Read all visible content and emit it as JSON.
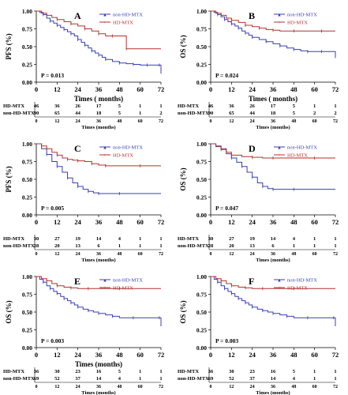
{
  "colors": {
    "non_hd_mtx": "#3a3fb4",
    "hd_mtx": "#b4322e"
  },
  "chart_data": [
    {
      "type": "line",
      "panel_letter": "A",
      "ylabel": "PFS (%)",
      "xlabel": "Times ( months)",
      "xlim": [
        0,
        72
      ],
      "ylim": [
        0,
        1.0
      ],
      "x_ticks": [
        "0",
        "12",
        "24",
        "36",
        "48",
        "60",
        "72"
      ],
      "y_ticks": [
        "0.00",
        "0.25",
        "0.50",
        "0.75",
        "1.00"
      ],
      "p_value": "P = 0.013",
      "risk_xlabel": "Times (months)",
      "series": [
        {
          "name": "non-HD-MTX",
          "color_key": "non_hd_mtx",
          "marker": "▲",
          "x": [
            0,
            2,
            4,
            6,
            8,
            10,
            12,
            14,
            16,
            18,
            20,
            22,
            24,
            26,
            28,
            30,
            32,
            34,
            36,
            38,
            40,
            44,
            48,
            52,
            56,
            60,
            64,
            68,
            71,
            72
          ],
          "y": [
            1.0,
            0.98,
            0.95,
            0.9,
            0.86,
            0.83,
            0.8,
            0.77,
            0.74,
            0.71,
            0.68,
            0.65,
            0.6,
            0.56,
            0.52,
            0.48,
            0.44,
            0.41,
            0.38,
            0.35,
            0.32,
            0.29,
            0.27,
            0.26,
            0.25,
            0.24,
            0.24,
            0.24,
            0.24,
            0.12
          ]
        },
        {
          "name": "HD-MTX",
          "color_key": "hd_mtx",
          "marker": "+",
          "x": [
            0,
            3,
            6,
            9,
            12,
            16,
            20,
            24,
            28,
            32,
            36,
            40,
            44,
            48,
            52,
            60,
            72
          ],
          "y": [
            1.0,
            0.97,
            0.94,
            0.91,
            0.88,
            0.85,
            0.82,
            0.79,
            0.75,
            0.72,
            0.68,
            0.65,
            0.65,
            0.65,
            0.47,
            0.47,
            0.47
          ]
        }
      ],
      "risk_table": [
        {
          "label": "HD-MTX",
          "values": [
            "46",
            "36",
            "26",
            "17",
            "5",
            "1",
            "1"
          ]
        },
        {
          "label": "non-HD-MTX",
          "values": [
            "90",
            "65",
            "44",
            "18",
            "5",
            "1",
            "2"
          ]
        }
      ]
    },
    {
      "type": "line",
      "panel_letter": "B",
      "ylabel": "OS (%)",
      "xlabel": "Times ( months)",
      "xlim": [
        0,
        72
      ],
      "ylim": [
        0,
        1.0
      ],
      "x_ticks": [
        "0",
        "12",
        "24",
        "36",
        "48",
        "60",
        "72"
      ],
      "y_ticks": [
        "0.00",
        "0.25",
        "0.50",
        "0.75",
        "1.00"
      ],
      "p_value": "P = 0.024",
      "risk_xlabel": "Times (months)",
      "series": [
        {
          "name": "non-HD-MTX",
          "color_key": "non_hd_mtx",
          "marker": "▲",
          "x": [
            0,
            2,
            4,
            6,
            8,
            10,
            12,
            14,
            16,
            18,
            20,
            22,
            24,
            28,
            32,
            36,
            40,
            44,
            48,
            52,
            56,
            60,
            64,
            70,
            72
          ],
          "y": [
            1.0,
            0.98,
            0.95,
            0.92,
            0.88,
            0.85,
            0.82,
            0.79,
            0.76,
            0.72,
            0.69,
            0.66,
            0.63,
            0.6,
            0.57,
            0.54,
            0.51,
            0.48,
            0.46,
            0.44,
            0.43,
            0.43,
            0.43,
            0.43,
            0.34
          ]
        },
        {
          "name": "HD-MTX",
          "color_key": "hd_mtx",
          "marker": "+",
          "x": [
            0,
            3,
            6,
            9,
            12,
            16,
            20,
            24,
            28,
            32,
            36,
            40,
            48,
            56,
            64,
            72
          ],
          "y": [
            1.0,
            0.97,
            0.94,
            0.9,
            0.87,
            0.84,
            0.8,
            0.78,
            0.76,
            0.74,
            0.73,
            0.72,
            0.72,
            0.72,
            0.72,
            0.72
          ]
        }
      ],
      "risk_table": [
        {
          "label": "HD-MTX",
          "values": [
            "46",
            "36",
            "26",
            "17",
            "5",
            "1",
            "1"
          ]
        },
        {
          "label": "non-HD-MTX",
          "values": [
            "90",
            "65",
            "44",
            "18",
            "5",
            "2",
            "2"
          ]
        }
      ]
    },
    {
      "type": "line",
      "panel_letter": "C",
      "ylabel": "PFS (%)",
      "xlabel": "",
      "xlim": [
        0,
        72
      ],
      "ylim": [
        0,
        1.0
      ],
      "x_ticks": [
        "0",
        "12",
        "24",
        "36",
        "48",
        "60",
        "72"
      ],
      "y_ticks": [
        "0.00",
        "0.25",
        "0.50",
        "0.75",
        "1.00"
      ],
      "p_value": "P = 0.005",
      "risk_xlabel": "Times (months)",
      "series": [
        {
          "name": "non-HD-MTX",
          "color_key": "non_hd_mtx",
          "marker": "▲",
          "x": [
            0,
            3,
            6,
            9,
            12,
            15,
            18,
            21,
            24,
            27,
            30,
            33,
            36,
            40,
            48,
            60,
            72
          ],
          "y": [
            1.0,
            0.93,
            0.85,
            0.75,
            0.68,
            0.6,
            0.52,
            0.45,
            0.4,
            0.36,
            0.33,
            0.31,
            0.3,
            0.3,
            0.3,
            0.3,
            0.3
          ]
        },
        {
          "name": "HD-MTX",
          "color_key": "hd_mtx",
          "marker": "+",
          "x": [
            0,
            3,
            6,
            9,
            12,
            15,
            18,
            21,
            24,
            28,
            32,
            36,
            40,
            48,
            60,
            72
          ],
          "y": [
            1.0,
            0.97,
            0.93,
            0.88,
            0.84,
            0.8,
            0.78,
            0.77,
            0.76,
            0.75,
            0.72,
            0.7,
            0.69,
            0.69,
            0.69,
            0.69
          ]
        }
      ],
      "risk_table": [
        {
          "label": "HD-MTX",
          "values": [
            "30",
            "27",
            "19",
            "14",
            "4",
            "1",
            "1"
          ]
        },
        {
          "label": "non-HD-MTX",
          "values": [
            "28",
            "20",
            "13",
            "6",
            "1",
            "1",
            "1"
          ]
        }
      ]
    },
    {
      "type": "line",
      "panel_letter": "D",
      "ylabel": "OS (%)",
      "xlabel": "",
      "xlim": [
        0,
        72
      ],
      "ylim": [
        0,
        1.0
      ],
      "x_ticks": [
        "0",
        "12",
        "24",
        "36",
        "48",
        "60",
        "72"
      ],
      "y_ticks": [
        "0.00",
        "0.25",
        "0.50",
        "0.75",
        "1.00"
      ],
      "p_value": "P = 0.047",
      "risk_xlabel": "Times (months)",
      "series": [
        {
          "name": "non-HD-MTX",
          "color_key": "non_hd_mtx",
          "marker": "▲",
          "x": [
            0,
            3,
            6,
            9,
            12,
            15,
            18,
            21,
            24,
            27,
            30,
            33,
            36,
            40,
            48,
            60,
            72
          ],
          "y": [
            1.0,
            0.96,
            0.92,
            0.86,
            0.8,
            0.74,
            0.68,
            0.6,
            0.53,
            0.45,
            0.4,
            0.37,
            0.36,
            0.36,
            0.36,
            0.36,
            0.36
          ]
        },
        {
          "name": "HD-MTX",
          "color_key": "hd_mtx",
          "marker": "+",
          "x": [
            0,
            3,
            6,
            9,
            12,
            18,
            24,
            30,
            36,
            48,
            60,
            72
          ],
          "y": [
            1.0,
            0.97,
            0.93,
            0.88,
            0.84,
            0.82,
            0.81,
            0.8,
            0.8,
            0.8,
            0.8,
            0.8
          ]
        }
      ],
      "risk_table": [
        {
          "label": "HD-MTX",
          "values": [
            "30",
            "27",
            "19",
            "14",
            "4",
            "1",
            "1"
          ]
        },
        {
          "label": "non-HD-MTX",
          "values": [
            "28",
            "20",
            "13",
            "6",
            "1",
            "1",
            "1"
          ]
        }
      ]
    },
    {
      "type": "line",
      "panel_letter": "E",
      "ylabel": "OS (%)",
      "xlabel": "Times (months)",
      "xlim": [
        0,
        72
      ],
      "ylim": [
        0,
        1.0
      ],
      "x_ticks": [
        "0",
        "12",
        "24",
        "36",
        "48",
        "60",
        "72"
      ],
      "y_ticks": [
        "0.00",
        "0.25",
        "0.50",
        "0.75",
        "1.00"
      ],
      "p_value": "P = 0.003",
      "risk_xlabel": "Times (months)",
      "series": [
        {
          "name": "non-HD-MTX",
          "color_key": "non_hd_mtx",
          "marker": "▲",
          "x": [
            0,
            2,
            4,
            6,
            8,
            10,
            12,
            14,
            16,
            18,
            20,
            22,
            24,
            27,
            30,
            33,
            36,
            40,
            44,
            48,
            56,
            64,
            71,
            72
          ],
          "y": [
            1.0,
            0.96,
            0.92,
            0.87,
            0.83,
            0.79,
            0.76,
            0.72,
            0.69,
            0.66,
            0.63,
            0.6,
            0.57,
            0.54,
            0.52,
            0.5,
            0.48,
            0.46,
            0.44,
            0.42,
            0.42,
            0.42,
            0.42,
            0.3
          ]
        },
        {
          "name": "HD-MTX",
          "color_key": "hd_mtx",
          "marker": "+",
          "x": [
            0,
            3,
            6,
            9,
            12,
            16,
            20,
            24,
            30,
            36,
            48,
            60,
            72
          ],
          "y": [
            1.0,
            0.97,
            0.94,
            0.9,
            0.87,
            0.85,
            0.84,
            0.83,
            0.83,
            0.83,
            0.83,
            0.83,
            0.83
          ]
        }
      ],
      "risk_table": [
        {
          "label": "HD-MTX",
          "values": [
            "36",
            "30",
            "23",
            "16",
            "5",
            "1",
            "1"
          ]
        },
        {
          "label": "non-HD-MTX",
          "values": [
            "69",
            "52",
            "37",
            "14",
            "4",
            "1",
            "1"
          ]
        }
      ]
    },
    {
      "type": "line",
      "panel_letter": "F",
      "ylabel": "OS (%)",
      "xlabel": "",
      "xlim": [
        0,
        72
      ],
      "ylim": [
        0,
        1.0
      ],
      "x_ticks": [
        "0",
        "12",
        "24",
        "36",
        "48",
        "60",
        "72"
      ],
      "y_ticks": [
        "0.00",
        "0.25",
        "0.50",
        "0.75",
        "1.00"
      ],
      "p_value": "P = 0.003",
      "risk_xlabel": "Times (months)",
      "series": [
        {
          "name": "non-HD-MTX",
          "color_key": "non_hd_mtx",
          "marker": "▲",
          "x": [
            0,
            2,
            4,
            6,
            8,
            10,
            12,
            14,
            16,
            18,
            20,
            22,
            24,
            27,
            30,
            33,
            36,
            40,
            44,
            48,
            56,
            64,
            71,
            72
          ],
          "y": [
            1.0,
            0.96,
            0.92,
            0.87,
            0.83,
            0.79,
            0.76,
            0.72,
            0.69,
            0.66,
            0.63,
            0.6,
            0.57,
            0.54,
            0.52,
            0.5,
            0.48,
            0.46,
            0.44,
            0.42,
            0.42,
            0.42,
            0.42,
            0.3
          ]
        },
        {
          "name": "HD-MTX",
          "color_key": "hd_mtx",
          "marker": "+",
          "x": [
            0,
            3,
            6,
            9,
            12,
            16,
            20,
            24,
            30,
            36,
            48,
            60,
            72
          ],
          "y": [
            1.0,
            0.97,
            0.94,
            0.9,
            0.87,
            0.85,
            0.84,
            0.83,
            0.83,
            0.83,
            0.83,
            0.83,
            0.83
          ]
        }
      ],
      "risk_table": [
        {
          "label": "HD-MTX",
          "values": [
            "36",
            "30",
            "23",
            "16",
            "5",
            "1",
            "1"
          ]
        },
        {
          "label": "non-HD-MTX",
          "values": [
            "69",
            "52",
            "37",
            "14",
            "4",
            "1",
            "1"
          ]
        }
      ]
    }
  ]
}
